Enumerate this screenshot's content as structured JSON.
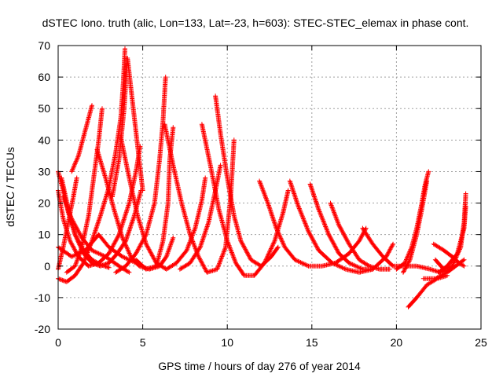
{
  "chart_data": {
    "type": "scatter",
    "title": "dSTEC Iono. truth (alic, Lon=133, Lat=-23, h=603): STEC-STEC_elemax in phase cont.",
    "xlabel": "GPS time / hours of day 276 of year 2014",
    "ylabel": "dSTEC  / TECUs",
    "xlim": [
      0,
      25
    ],
    "ylim": [
      -20,
      70
    ],
    "xticks": [
      0,
      5,
      10,
      15,
      20,
      25
    ],
    "xtick_labels": [
      "0",
      "5",
      "10",
      "15",
      "20",
      "25"
    ],
    "yticks": [
      -20,
      -10,
      0,
      10,
      20,
      30,
      40,
      50,
      60,
      70
    ],
    "ytick_labels": [
      "-20",
      "-10",
      "0",
      "10",
      "20",
      "30",
      "40",
      "50",
      "60",
      "70"
    ],
    "grid": true,
    "legend": "none",
    "marker": "+",
    "color": "#ff0000",
    "series": [
      {
        "name": "arc-01",
        "points": [
          [
            0.0,
            -1
          ],
          [
            0.3,
            6
          ],
          [
            0.6,
            14
          ],
          [
            0.9,
            22
          ],
          [
            1.1,
            28
          ]
        ]
      },
      {
        "name": "arc-02",
        "points": [
          [
            0.0,
            30
          ],
          [
            0.3,
            24
          ],
          [
            0.6,
            17
          ],
          [
            1.0,
            10
          ],
          [
            1.5,
            5
          ],
          [
            2.0,
            2
          ],
          [
            2.5,
            0.5
          ],
          [
            3.0,
            -0.5
          ]
        ]
      },
      {
        "name": "arc-03",
        "points": [
          [
            0.0,
            -4
          ],
          [
            0.5,
            -5
          ],
          [
            1.0,
            -3
          ],
          [
            1.5,
            1
          ],
          [
            2.0,
            8
          ],
          [
            2.5,
            16
          ],
          [
            3.0,
            25
          ],
          [
            3.4,
            36
          ],
          [
            3.7,
            47
          ],
          [
            3.85,
            58
          ],
          [
            3.95,
            69
          ]
        ]
      },
      {
        "name": "arc-04",
        "points": [
          [
            0.2,
            28
          ],
          [
            0.6,
            18
          ],
          [
            1.0,
            10
          ],
          [
            1.5,
            4
          ],
          [
            2.0,
            1
          ],
          [
            2.5,
            0
          ],
          [
            3.0,
            1
          ],
          [
            3.5,
            4
          ],
          [
            4.0,
            8
          ],
          [
            4.5,
            16
          ],
          [
            4.9,
            24
          ]
        ]
      },
      {
        "name": "arc-05",
        "points": [
          [
            0.0,
            24
          ],
          [
            0.3,
            15
          ],
          [
            0.7,
            8
          ],
          [
            1.2,
            3
          ],
          [
            1.8,
            0
          ],
          [
            2.4,
            1
          ],
          [
            3.0,
            4
          ],
          [
            3.6,
            10
          ],
          [
            4.2,
            20
          ],
          [
            4.6,
            30
          ],
          [
            4.85,
            38
          ]
        ]
      },
      {
        "name": "arc-06",
        "points": [
          [
            0.8,
            30
          ],
          [
            1.2,
            35
          ],
          [
            1.6,
            43
          ],
          [
            2.0,
            51
          ]
        ]
      },
      {
        "name": "arc-07",
        "points": [
          [
            0.5,
            -2
          ],
          [
            1.0,
            0
          ],
          [
            1.4,
            6
          ],
          [
            1.8,
            16
          ],
          [
            2.1,
            28
          ],
          [
            2.4,
            40
          ],
          [
            2.6,
            50
          ]
        ]
      },
      {
        "name": "arc-08",
        "points": [
          [
            0.3,
            22
          ],
          [
            0.8,
            15
          ],
          [
            1.4,
            9
          ],
          [
            2.0,
            5
          ],
          [
            2.8,
            3
          ],
          [
            3.6,
            0
          ],
          [
            4.2,
            -2
          ]
        ]
      },
      {
        "name": "arc-09",
        "points": [
          [
            0.0,
            6
          ],
          [
            0.8,
            3
          ],
          [
            1.6,
            5
          ],
          [
            2.4,
            10
          ],
          [
            3.0,
            6
          ],
          [
            3.8,
            3
          ],
          [
            4.6,
            1
          ]
        ]
      },
      {
        "name": "arc-10",
        "points": [
          [
            2.3,
            37
          ],
          [
            2.8,
            28
          ],
          [
            3.3,
            18
          ],
          [
            3.8,
            9
          ],
          [
            4.3,
            3
          ],
          [
            4.8,
            0
          ],
          [
            5.4,
            -1
          ],
          [
            6.0,
            0
          ],
          [
            6.4,
            3
          ],
          [
            6.8,
            9
          ]
        ]
      },
      {
        "name": "arc-11",
        "points": [
          [
            3.2,
            22
          ],
          [
            3.6,
            34
          ],
          [
            3.9,
            50
          ],
          [
            4.1,
            66
          ],
          [
            4.4,
            52
          ],
          [
            4.7,
            38
          ],
          [
            5.0,
            24
          ]
        ]
      },
      {
        "name": "arc-12",
        "points": [
          [
            3.4,
            -2
          ],
          [
            4.0,
            0
          ],
          [
            4.6,
            4
          ],
          [
            5.2,
            10
          ],
          [
            5.7,
            20
          ],
          [
            6.0,
            34
          ],
          [
            6.2,
            46
          ],
          [
            6.35,
            60
          ]
        ]
      },
      {
        "name": "arc-13",
        "points": [
          [
            3.7,
            41
          ],
          [
            4.2,
            28
          ],
          [
            4.7,
            16
          ],
          [
            5.2,
            7
          ],
          [
            5.8,
            1
          ],
          [
            6.4,
            -1
          ],
          [
            7.0,
            1
          ],
          [
            7.6,
            5
          ],
          [
            8.1,
            12
          ],
          [
            8.5,
            21
          ],
          [
            8.7,
            28
          ]
        ]
      },
      {
        "name": "arc-14",
        "points": [
          [
            4.6,
            2
          ],
          [
            5.2,
            -1
          ],
          [
            5.8,
            0
          ],
          [
            6.2,
            8
          ],
          [
            6.5,
            20
          ],
          [
            6.6,
            34
          ],
          [
            6.8,
            44
          ]
        ]
      },
      {
        "name": "arc-15",
        "points": [
          [
            6.3,
            45
          ],
          [
            6.8,
            32
          ],
          [
            7.3,
            20
          ],
          [
            7.8,
            10
          ],
          [
            8.3,
            3
          ],
          [
            8.8,
            -2
          ],
          [
            9.4,
            -1
          ],
          [
            9.9,
            6
          ],
          [
            10.2,
            22
          ],
          [
            10.4,
            40
          ]
        ]
      },
      {
        "name": "arc-16",
        "points": [
          [
            8.5,
            45
          ],
          [
            9.0,
            32
          ],
          [
            9.5,
            18
          ],
          [
            10.0,
            8
          ],
          [
            10.5,
            1
          ],
          [
            11.0,
            -3
          ],
          [
            11.6,
            -3
          ],
          [
            12.2,
            1
          ],
          [
            12.8,
            8
          ],
          [
            13.3,
            17
          ],
          [
            13.6,
            24
          ]
        ]
      },
      {
        "name": "arc-17",
        "points": [
          [
            9.3,
            54
          ],
          [
            9.6,
            42
          ],
          [
            10.0,
            28
          ],
          [
            10.4,
            16
          ],
          [
            10.8,
            8
          ],
          [
            11.4,
            2
          ],
          [
            12.0,
            0
          ],
          [
            12.6,
            3
          ],
          [
            13.0,
            6
          ]
        ]
      },
      {
        "name": "arc-18",
        "points": [
          [
            7.2,
            -1
          ],
          [
            7.8,
            1
          ],
          [
            8.4,
            6
          ],
          [
            8.9,
            14
          ],
          [
            9.3,
            24
          ],
          [
            9.6,
            32
          ]
        ]
      },
      {
        "name": "arc-19",
        "points": [
          [
            11.9,
            27
          ],
          [
            12.4,
            20
          ],
          [
            12.9,
            12
          ],
          [
            13.4,
            6
          ],
          [
            14.0,
            2
          ],
          [
            14.8,
            0
          ],
          [
            15.6,
            0
          ],
          [
            16.4,
            1
          ],
          [
            17.2,
            4
          ],
          [
            17.8,
            8
          ],
          [
            18.2,
            12
          ]
        ]
      },
      {
        "name": "arc-20",
        "points": [
          [
            13.7,
            27
          ],
          [
            14.2,
            19
          ],
          [
            14.8,
            11
          ],
          [
            15.4,
            5
          ],
          [
            16.2,
            1
          ],
          [
            17.0,
            -1
          ],
          [
            17.8,
            -2
          ],
          [
            18.6,
            -1
          ],
          [
            19.4,
            3
          ],
          [
            19.8,
            7
          ]
        ]
      },
      {
        "name": "arc-21",
        "points": [
          [
            14.9,
            26
          ],
          [
            15.4,
            18
          ],
          [
            16.0,
            10
          ],
          [
            16.6,
            4
          ],
          [
            17.2,
            1
          ],
          [
            18.0,
            -1
          ],
          [
            18.6,
            -1
          ]
        ]
      },
      {
        "name": "arc-22",
        "points": [
          [
            16.1,
            20
          ],
          [
            16.6,
            13
          ],
          [
            17.2,
            7
          ],
          [
            17.8,
            2
          ],
          [
            18.4,
            0
          ],
          [
            19.0,
            -1
          ],
          [
            19.6,
            -1
          ]
        ]
      },
      {
        "name": "arc-23",
        "points": [
          [
            18.0,
            12
          ],
          [
            18.6,
            7
          ],
          [
            19.2,
            3
          ],
          [
            19.8,
            0
          ],
          [
            20.4,
            0
          ]
        ]
      },
      {
        "name": "arc-24",
        "points": [
          [
            20.0,
            -1
          ],
          [
            20.5,
            1
          ],
          [
            20.9,
            6
          ],
          [
            21.2,
            12
          ],
          [
            21.5,
            20
          ],
          [
            21.7,
            26
          ],
          [
            21.9,
            30
          ]
        ]
      },
      {
        "name": "arc-25",
        "points": [
          [
            20.4,
            -2
          ],
          [
            20.8,
            2
          ],
          [
            21.2,
            10
          ],
          [
            21.5,
            18
          ],
          [
            21.8,
            27
          ]
        ]
      },
      {
        "name": "arc-26",
        "points": [
          [
            20.7,
            -13
          ],
          [
            21.2,
            -10
          ],
          [
            21.8,
            -6
          ],
          [
            22.4,
            -4
          ],
          [
            23.0,
            -3
          ]
        ]
      },
      {
        "name": "arc-27",
        "points": [
          [
            20.5,
            0
          ],
          [
            21.2,
            0
          ],
          [
            22.0,
            -1
          ],
          [
            22.6,
            -2
          ],
          [
            23.2,
            -1
          ]
        ]
      },
      {
        "name": "arc-28",
        "points": [
          [
            22.3,
            2
          ],
          [
            22.8,
            -1
          ],
          [
            23.3,
            0
          ],
          [
            23.8,
            6
          ],
          [
            24.0,
            14
          ],
          [
            24.1,
            23
          ]
        ]
      },
      {
        "name": "arc-29",
        "points": [
          [
            22.2,
            7
          ],
          [
            22.8,
            5
          ],
          [
            23.3,
            3
          ],
          [
            23.7,
            1
          ],
          [
            24.0,
            0
          ]
        ]
      },
      {
        "name": "arc-30",
        "points": [
          [
            21.6,
            -4
          ],
          [
            22.3,
            -4
          ],
          [
            23.0,
            -2
          ],
          [
            23.5,
            0
          ],
          [
            24.0,
            2
          ]
        ]
      },
      {
        "name": "arc-31",
        "points": [
          [
            22.5,
            -2
          ],
          [
            23.0,
            0
          ],
          [
            23.6,
            4
          ],
          [
            24.0,
            12
          ],
          [
            24.1,
            19
          ]
        ]
      }
    ]
  }
}
